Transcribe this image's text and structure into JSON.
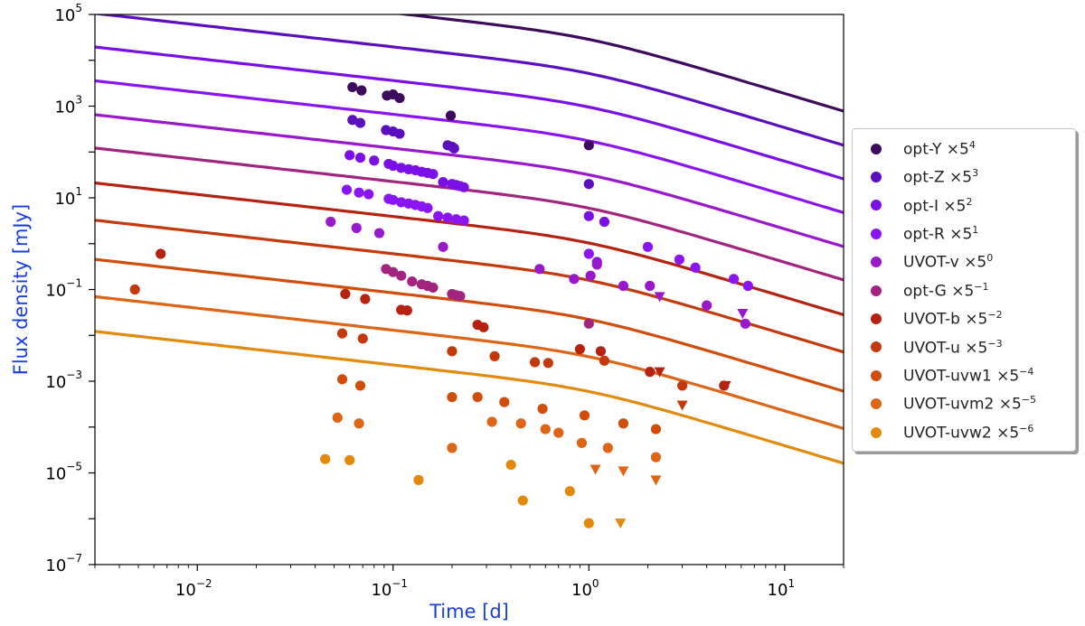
{
  "chart_data": {
    "type": "scatter",
    "xscale": "log",
    "yscale": "log",
    "xlim": [
      0.003,
      20
    ],
    "ylim": [
      1e-07,
      100000.0
    ],
    "xlabel": "Time [d]",
    "ylabel": "Flux density [mJy]",
    "xticks": [
      {
        "value": 0.01,
        "base": "10",
        "exp": "−2"
      },
      {
        "value": 0.1,
        "base": "10",
        "exp": "−1"
      },
      {
        "value": 1,
        "base": "10",
        "exp": "0"
      },
      {
        "value": 10,
        "base": "10",
        "exp": "1"
      }
    ],
    "yticks": [
      {
        "value": 1e-07,
        "base": "10",
        "exp": "−7"
      },
      {
        "value": 1e-05,
        "base": "10",
        "exp": "−5"
      },
      {
        "value": 0.001,
        "base": "10",
        "exp": "−3"
      },
      {
        "value": 0.1,
        "base": "10",
        "exp": "−1"
      },
      {
        "value": 10,
        "base": "10",
        "exp": "1"
      },
      {
        "value": 1000,
        "base": "10",
        "exp": "3"
      },
      {
        "value": 100000,
        "base": "10",
        "exp": "5"
      }
    ],
    "model": {
      "break_time_d": 1.0,
      "alpha1": 0.48,
      "alpha2": 1.28
    },
    "series": [
      {
        "name": "opt-Y",
        "scale_label": "×5",
        "scale_exp": "4",
        "color": "#3d0a5e",
        "model_amp": 36000,
        "points": [
          {
            "x": 0.062,
            "y": 2600
          },
          {
            "x": 0.069,
            "y": 2200
          },
          {
            "x": 0.093,
            "y": 1700
          },
          {
            "x": 0.1,
            "y": 1800
          },
          {
            "x": 0.108,
            "y": 1500
          },
          {
            "x": 0.197,
            "y": 620
          },
          {
            "x": 1.0,
            "y": 140
          }
        ],
        "upper_limits": []
      },
      {
        "name": "opt-Z",
        "scale_label": "×5",
        "scale_exp": "3",
        "color": "#5b0fbf",
        "model_amp": 6500,
        "points": [
          {
            "x": 0.062,
            "y": 500
          },
          {
            "x": 0.068,
            "y": 430
          },
          {
            "x": 0.092,
            "y": 300
          },
          {
            "x": 0.1,
            "y": 280
          },
          {
            "x": 0.108,
            "y": 250
          },
          {
            "x": 0.19,
            "y": 140
          },
          {
            "x": 0.2,
            "y": 130
          },
          {
            "x": 0.205,
            "y": 120
          },
          {
            "x": 1.0,
            "y": 20
          }
        ],
        "upper_limits": []
      },
      {
        "name": "opt-I",
        "scale_label": "×5",
        "scale_exp": "2",
        "color": "#7a10e6",
        "model_amp": 1200,
        "points": [
          {
            "x": 0.06,
            "y": 85
          },
          {
            "x": 0.068,
            "y": 75
          },
          {
            "x": 0.08,
            "y": 65
          },
          {
            "x": 0.095,
            "y": 55
          },
          {
            "x": 0.1,
            "y": 50
          },
          {
            "x": 0.11,
            "y": 45
          },
          {
            "x": 0.12,
            "y": 42
          },
          {
            "x": 0.13,
            "y": 40
          },
          {
            "x": 0.14,
            "y": 37
          },
          {
            "x": 0.15,
            "y": 35
          },
          {
            "x": 0.16,
            "y": 33
          },
          {
            "x": 0.18,
            "y": 22
          },
          {
            "x": 0.2,
            "y": 20
          },
          {
            "x": 0.21,
            "y": 19
          },
          {
            "x": 0.22,
            "y": 18
          },
          {
            "x": 0.23,
            "y": 17
          },
          {
            "x": 1.0,
            "y": 4
          },
          {
            "x": 1.2,
            "y": 3
          }
        ],
        "upper_limits": []
      },
      {
        "name": "opt-R",
        "scale_label": "×5",
        "scale_exp": "1",
        "color": "#8a14f2",
        "model_amp": 220,
        "points": [
          {
            "x": 0.058,
            "y": 15
          },
          {
            "x": 0.067,
            "y": 13
          },
          {
            "x": 0.075,
            "y": 12
          },
          {
            "x": 0.095,
            "y": 9.5
          },
          {
            "x": 0.1,
            "y": 9
          },
          {
            "x": 0.11,
            "y": 8
          },
          {
            "x": 0.12,
            "y": 7.5
          },
          {
            "x": 0.13,
            "y": 7
          },
          {
            "x": 0.14,
            "y": 6.5
          },
          {
            "x": 0.15,
            "y": 6
          },
          {
            "x": 0.17,
            "y": 4
          },
          {
            "x": 0.19,
            "y": 3.7
          },
          {
            "x": 0.21,
            "y": 3.4
          },
          {
            "x": 0.23,
            "y": 3.2
          },
          {
            "x": 1.0,
            "y": 0.6
          },
          {
            "x": 1.1,
            "y": 0.4
          },
          {
            "x": 2.0,
            "y": 0.85
          },
          {
            "x": 2.9,
            "y": 0.45
          },
          {
            "x": 3.5,
            "y": 0.3
          },
          {
            "x": 5.5,
            "y": 0.17
          },
          {
            "x": 6.5,
            "y": 0.12
          }
        ],
        "upper_limits": []
      },
      {
        "name": "UVOT-v",
        "scale_label": "×5",
        "scale_exp": "0",
        "color": "#9a18cc",
        "model_amp": 40,
        "points": [
          {
            "x": 0.048,
            "y": 3
          },
          {
            "x": 0.065,
            "y": 2.2
          },
          {
            "x": 0.085,
            "y": 1.7
          },
          {
            "x": 0.18,
            "y": 0.85
          },
          {
            "x": 0.56,
            "y": 0.28
          },
          {
            "x": 0.84,
            "y": 0.17
          },
          {
            "x": 1.02,
            "y": 0.2
          },
          {
            "x": 1.1,
            "y": 0.35
          },
          {
            "x": 1.5,
            "y": 0.12
          },
          {
            "x": 2.05,
            "y": 0.12
          },
          {
            "x": 4.0,
            "y": 0.045
          },
          {
            "x": 6.3,
            "y": 0.018
          }
        ],
        "upper_limits": [
          {
            "x": 2.3,
            "y": 0.07
          },
          {
            "x": 6.1,
            "y": 0.03
          }
        ]
      },
      {
        "name": "opt-G",
        "scale_label": "×5",
        "scale_exp": "−1",
        "color": "#a3247f",
        "model_amp": 7.5,
        "points": [
          {
            "x": 0.092,
            "y": 0.28
          },
          {
            "x": 0.1,
            "y": 0.24
          },
          {
            "x": 0.11,
            "y": 0.2
          },
          {
            "x": 0.125,
            "y": 0.15
          },
          {
            "x": 0.14,
            "y": 0.13
          },
          {
            "x": 0.15,
            "y": 0.12
          },
          {
            "x": 0.16,
            "y": 0.11
          },
          {
            "x": 0.2,
            "y": 0.08
          },
          {
            "x": 0.21,
            "y": 0.075
          },
          {
            "x": 0.22,
            "y": 0.072
          },
          {
            "x": 1.0,
            "y": 0.018
          }
        ],
        "upper_limits": []
      },
      {
        "name": "UVOT-b",
        "scale_label": "×5",
        "scale_exp": "−2",
        "color": "#b52310",
        "model_amp": 1.3,
        "points": [
          {
            "x": 0.0065,
            "y": 0.6
          },
          {
            "x": 0.057,
            "y": 0.08
          },
          {
            "x": 0.072,
            "y": 0.062
          },
          {
            "x": 0.11,
            "y": 0.036
          },
          {
            "x": 0.118,
            "y": 0.035
          },
          {
            "x": 0.27,
            "y": 0.017
          },
          {
            "x": 0.29,
            "y": 0.015
          },
          {
            "x": 0.9,
            "y": 0.005
          },
          {
            "x": 1.15,
            "y": 0.0045
          },
          {
            "x": 2.05,
            "y": 0.0016
          },
          {
            "x": 4.9,
            "y": 0.0008
          }
        ],
        "upper_limits": [
          {
            "x": 2.3,
            "y": 0.0016
          },
          {
            "x": 5.0,
            "y": 0.0008
          }
        ]
      },
      {
        "name": "UVOT-u",
        "scale_label": "×5",
        "scale_exp": "−3",
        "color": "#c4390b",
        "model_amp": 0.2,
        "points": [
          {
            "x": 0.0048,
            "y": 0.1
          },
          {
            "x": 0.055,
            "y": 0.011
          },
          {
            "x": 0.07,
            "y": 0.0085
          },
          {
            "x": 0.2,
            "y": 0.0045
          },
          {
            "x": 0.33,
            "y": 0.0035
          },
          {
            "x": 0.53,
            "y": 0.0026
          },
          {
            "x": 0.62,
            "y": 0.0025
          },
          {
            "x": 1.2,
            "y": 0.0028
          },
          {
            "x": 3.0,
            "y": 0.0008
          }
        ],
        "upper_limits": [
          {
            "x": 3.0,
            "y": 0.0003
          }
        ]
      },
      {
        "name": "UVOT-uvw1",
        "scale_label": "×5",
        "scale_exp": "−4",
        "color": "#d14d0b",
        "model_amp": 0.028,
        "points": [
          {
            "x": 0.055,
            "y": 0.0011
          },
          {
            "x": 0.068,
            "y": 0.0008
          },
          {
            "x": 0.2,
            "y": 0.00045
          },
          {
            "x": 0.27,
            "y": 0.00045
          },
          {
            "x": 0.37,
            "y": 0.00035
          },
          {
            "x": 0.58,
            "y": 0.00025
          },
          {
            "x": 0.95,
            "y": 0.00018
          },
          {
            "x": 1.5,
            "y": 0.00012
          },
          {
            "x": 2.2,
            "y": 9e-05
          }
        ],
        "upper_limits": []
      },
      {
        "name": "UVOT-uvm2",
        "scale_label": "×5",
        "scale_exp": "−5",
        "color": "#dd6515",
        "model_amp": 0.0043,
        "points": [
          {
            "x": 0.052,
            "y": 0.00016
          },
          {
            "x": 0.067,
            "y": 0.00012
          },
          {
            "x": 0.2,
            "y": 3.5e-05
          },
          {
            "x": 0.32,
            "y": 0.00013
          },
          {
            "x": 0.45,
            "y": 0.00012
          },
          {
            "x": 0.6,
            "y": 9e-05
          },
          {
            "x": 0.7,
            "y": 7.5e-05
          },
          {
            "x": 0.92,
            "y": 4.5e-05
          },
          {
            "x": 1.25,
            "y": 3.5e-05
          },
          {
            "x": 2.2,
            "y": 2.2e-05
          }
        ],
        "upper_limits": [
          {
            "x": 1.08,
            "y": 1.2e-05
          },
          {
            "x": 1.5,
            "y": 1.1e-05
          },
          {
            "x": 2.2,
            "y": 7e-06
          }
        ]
      },
      {
        "name": "UVOT-uvw2",
        "scale_label": "×5",
        "scale_exp": "−6",
        "color": "#e38a0c",
        "model_amp": 0.00075,
        "points": [
          {
            "x": 0.045,
            "y": 2e-05
          },
          {
            "x": 0.06,
            "y": 1.9e-05
          },
          {
            "x": 0.135,
            "y": 7e-06
          },
          {
            "x": 0.4,
            "y": 1.5e-05
          },
          {
            "x": 0.46,
            "y": 2.5e-06
          },
          {
            "x": 0.8,
            "y": 4e-06
          },
          {
            "x": 1.0,
            "y": 8e-07
          }
        ],
        "upper_limits": [
          {
            "x": 1.45,
            "y": 8e-07
          }
        ]
      }
    ]
  }
}
